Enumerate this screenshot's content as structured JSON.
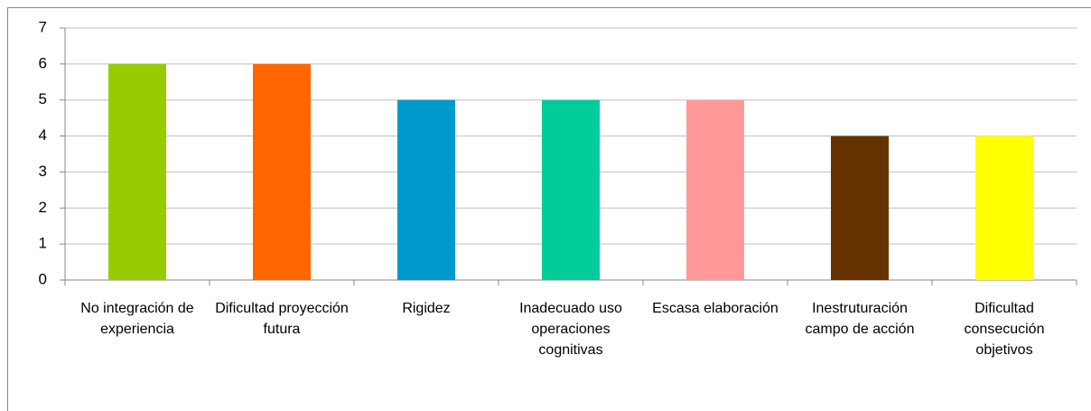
{
  "chart_data": {
    "type": "bar",
    "categories": [
      "No integración de experiencia",
      "Dificultad proyección futura",
      "Rigidez",
      "Inadecuado uso operaciones cognitivas",
      "Escasa elaboración",
      "Inestruturación campo de acción",
      "Dificultad consecución objetivos"
    ],
    "values": [
      6,
      6,
      5,
      5,
      5,
      4,
      4
    ],
    "colors": [
      "#99cc00",
      "#ff6600",
      "#0099cc",
      "#00cc99",
      "#ff9999",
      "#663300",
      "#ffff00"
    ],
    "ylim": [
      0,
      7
    ],
    "yticks": [
      0,
      1,
      2,
      3,
      4,
      5,
      6,
      7
    ],
    "grid": true
  }
}
